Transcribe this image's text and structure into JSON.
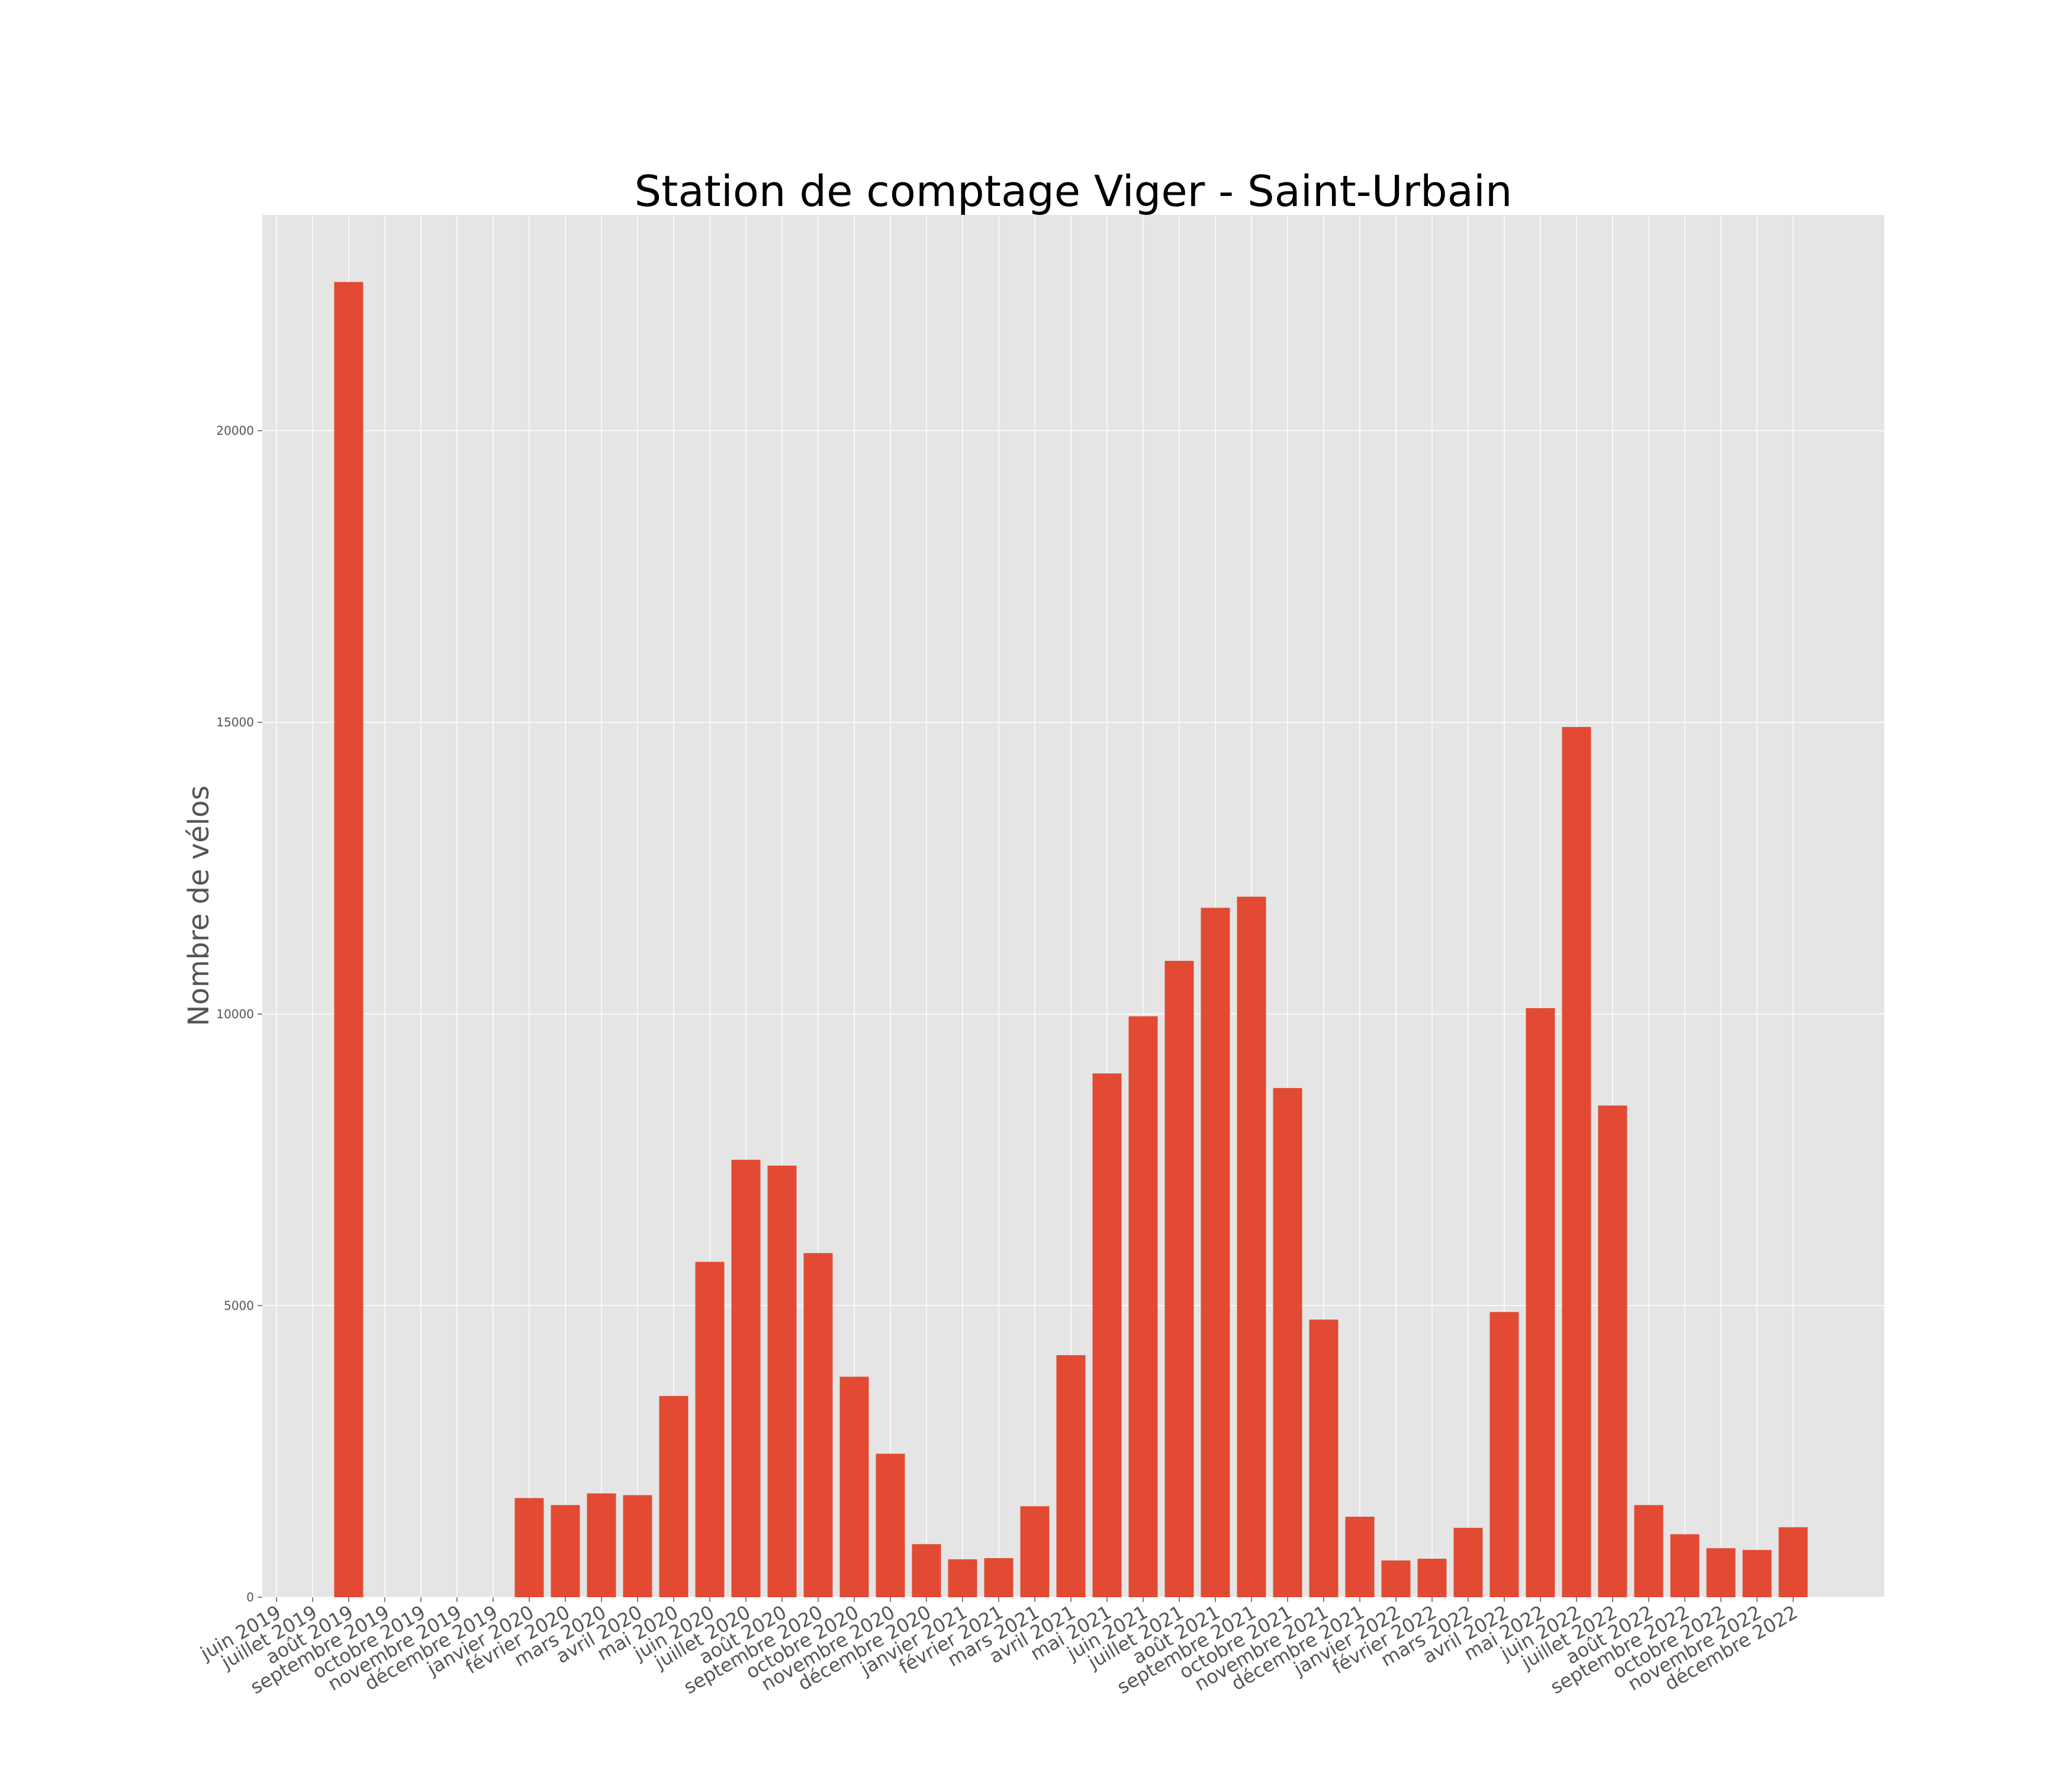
{
  "chart_data": {
    "type": "bar",
    "title": "Station de comptage Viger - Saint-Urbain",
    "xlabel": "",
    "ylabel": "Nombre de vélos",
    "ylim": [
      0,
      23700
    ],
    "yticks": [
      0,
      5000,
      10000,
      15000,
      20000
    ],
    "grid": true,
    "bar_color": "#E24A33",
    "background_color": "#E5E5E5",
    "grid_color": "#FFFFFF",
    "categories": [
      "juin 2019",
      "juillet 2019",
      "août 2019",
      "septembre 2019",
      "octobre 2019",
      "novembre 2019",
      "décembre 2019",
      "janvier 2020",
      "février 2020",
      "mars 2020",
      "avril 2020",
      "mai 2020",
      "juin 2020",
      "juillet 2020",
      "août 2020",
      "septembre 2020",
      "octobre 2020",
      "novembre 2020",
      "décembre 2020",
      "janvier 2021",
      "février 2021",
      "mars 2021",
      "avril 2021",
      "mai 2021",
      "juin 2021",
      "juillet 2021",
      "août 2021",
      "septembre 2021",
      "octobre 2021",
      "novembre 2021",
      "décembre 2021",
      "janvier 2022",
      "février 2022",
      "mars 2022",
      "avril 2022",
      "mai 2022",
      "juin 2022",
      "juillet 2022",
      "août 2022",
      "septembre 2022",
      "octobre 2022",
      "novembre 2022",
      "décembre 2022"
    ],
    "values": [
      0,
      0,
      22550,
      0,
      0,
      0,
      0,
      1700,
      1580,
      1780,
      1750,
      3450,
      5750,
      7500,
      7400,
      5900,
      3780,
      2460,
      910,
      650,
      670,
      1560,
      4150,
      8980,
      9960,
      10910,
      11820,
      12010,
      8730,
      4760,
      1380,
      630,
      660,
      1190,
      4890,
      10100,
      14920,
      8430,
      1580,
      1080,
      840,
      810,
      1200
    ]
  }
}
